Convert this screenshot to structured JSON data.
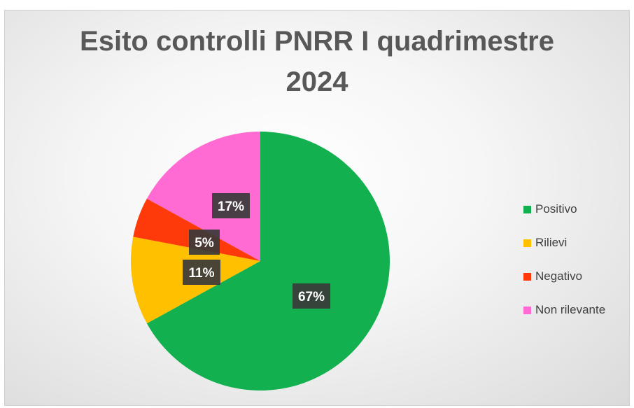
{
  "chart_data": {
    "type": "pie",
    "title": "Esito controlli PNRR I quadrimestre 2024",
    "title_lines": [
      "Esito controlli PNRR I quadrimestre",
      "2024"
    ],
    "categories": [
      "Positivo",
      "Rilievi",
      "Negativo",
      "Non rilevante"
    ],
    "values": [
      67,
      11,
      5,
      17
    ],
    "data_labels": [
      "67%",
      "11%",
      "5%",
      "17%"
    ],
    "colors": [
      "#12b04f",
      "#ffc000",
      "#ff3a0a",
      "#ff6bd2"
    ],
    "start_angle_deg": 0,
    "direction": "clockwise",
    "legend_position": "right"
  }
}
